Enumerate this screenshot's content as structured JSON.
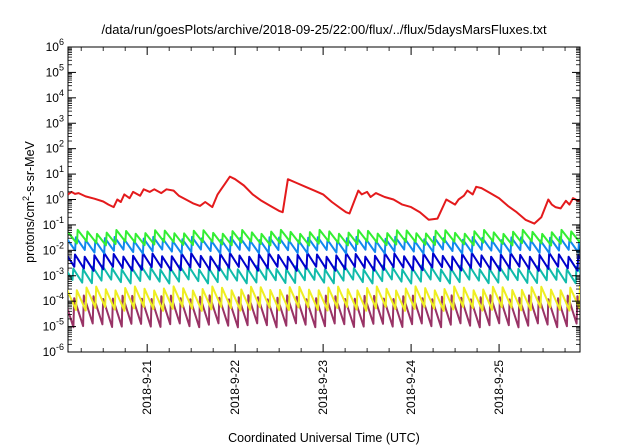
{
  "chart_data": {
    "type": "line",
    "title": "/data/run/goesPlots/archive/2018-09-25/22:00/flux/../flux/5daysMarsFluxes.txt",
    "xlabel": "Coordinated Universal Time (UTC)",
    "ylabel": {
      "base": "protons/cm",
      "sup": "2",
      "rest": "-s-sr-MeV"
    },
    "yscale": "log",
    "ylim_exp": [
      -6,
      6
    ],
    "y_ticks": [
      {
        "base": "10",
        "exp": "6"
      },
      {
        "base": "10",
        "exp": "5"
      },
      {
        "base": "10",
        "exp": "4"
      },
      {
        "base": "10",
        "exp": "3"
      },
      {
        "base": "10",
        "exp": "2"
      },
      {
        "base": "10",
        "exp": "1"
      },
      {
        "base": "10",
        "exp": "0"
      },
      {
        "base": "10",
        "exp": "-1"
      },
      {
        "base": "10",
        "exp": "-2"
      },
      {
        "base": "10",
        "exp": "-3"
      },
      {
        "base": "10",
        "exp": "-4"
      },
      {
        "base": "10",
        "exp": "-5"
      },
      {
        "base": "10",
        "exp": "-6"
      }
    ],
    "x_range_days": [
      20.1,
      25.92
    ],
    "x_ticks": [
      {
        "label": "2018-9-21",
        "day": 21
      },
      {
        "label": "2018-9-22",
        "day": 22
      },
      {
        "label": "2018-9-23",
        "day": 23
      },
      {
        "label": "2018-9-24",
        "day": 24
      },
      {
        "label": "2018-9-25",
        "day": 25
      }
    ],
    "grid": false,
    "legend": "none",
    "series": [
      {
        "color": "#e41a1c",
        "x_day": [
          20.1,
          20.14,
          20.18,
          20.22,
          20.3,
          20.4,
          20.5,
          20.56,
          20.62,
          20.66,
          20.7,
          20.74,
          20.8,
          20.84,
          20.92,
          20.96,
          21.03,
          21.08,
          21.16,
          21.22,
          21.3,
          21.36,
          21.44,
          21.52,
          21.6,
          21.66,
          21.74,
          21.8,
          21.84,
          21.88,
          21.94,
          22.0,
          22.1,
          22.2,
          22.3,
          22.4,
          22.5,
          22.54,
          22.6,
          22.7,
          22.8,
          22.9,
          23.0,
          23.1,
          23.2,
          23.26,
          23.3,
          23.4,
          23.44,
          23.5,
          23.54,
          23.6,
          23.7,
          23.8,
          23.9,
          24.0,
          24.1,
          24.2,
          24.3,
          24.4,
          24.5,
          24.54,
          24.6,
          24.64,
          24.7,
          24.74,
          24.8,
          24.9,
          25.0,
          25.1,
          25.2,
          25.3,
          25.4,
          25.48,
          25.56,
          25.6,
          25.64,
          25.7,
          25.76,
          25.8,
          25.84,
          25.9,
          25.92
        ],
        "y_exp": [
          0.2,
          0.3,
          0.22,
          0.25,
          0.12,
          0.03,
          -0.08,
          -0.2,
          -0.3,
          0.0,
          -0.1,
          0.2,
          0.05,
          0.3,
          0.15,
          0.4,
          0.3,
          0.4,
          0.25,
          0.4,
          0.35,
          0.15,
          0.0,
          -0.15,
          -0.25,
          -0.1,
          -0.3,
          0.2,
          0.4,
          0.6,
          0.9,
          0.8,
          0.55,
          0.2,
          -0.05,
          -0.25,
          -0.45,
          -0.5,
          0.8,
          0.65,
          0.5,
          0.35,
          0.2,
          -0.1,
          -0.35,
          -0.5,
          -0.55,
          0.35,
          0.2,
          0.3,
          0.1,
          0.25,
          0.1,
          0.0,
          -0.2,
          -0.3,
          -0.5,
          -0.8,
          -0.75,
          0.0,
          -0.2,
          0.0,
          0.15,
          0.35,
          0.2,
          0.5,
          0.45,
          0.25,
          0.05,
          -0.25,
          -0.5,
          -0.8,
          -0.95,
          -0.7,
          0.0,
          -0.2,
          -0.3,
          -0.35,
          -0.05,
          -0.2,
          0.05,
          -0.05,
          0.0
        ]
      },
      {
        "color": "#33ee33",
        "base_exp": -1.5,
        "amp": 0.45,
        "phase": 0.0
      },
      {
        "color": "#1188ee",
        "base_exp": -1.8,
        "amp": 0.5,
        "phase": 0.02
      },
      {
        "color": "#0000cc",
        "base_exp": -2.45,
        "amp": 0.55,
        "phase": 0.03
      },
      {
        "color": "#11bbaa",
        "base_exp": -2.95,
        "amp": 0.55,
        "phase": 0.05
      },
      {
        "color": "#eeee22",
        "base_exp": -3.9,
        "amp": 0.8,
        "phase": 0.01
      },
      {
        "color": "#993366",
        "base_exp": -4.4,
        "amp": 1.1,
        "phase": 0.04
      }
    ],
    "cycle_days": 0.11
  }
}
